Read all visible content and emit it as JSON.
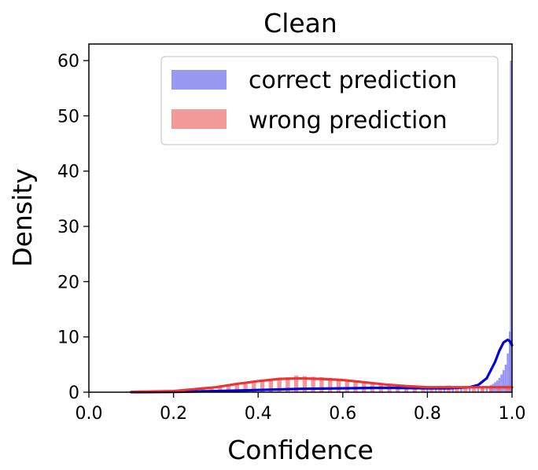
{
  "chart_data": {
    "type": "bar",
    "title": "Clean",
    "xlabel": "Confidence",
    "ylabel": "Density",
    "xlim": [
      0.0,
      1.0
    ],
    "ylim": [
      0,
      63
    ],
    "xticks": [
      "0.0",
      "0.2",
      "0.4",
      "0.6",
      "0.8",
      "1.0"
    ],
    "yticks": [
      "0",
      "10",
      "20",
      "30",
      "40",
      "50",
      "60"
    ],
    "legend": {
      "placement": "upper-right"
    },
    "grid": false,
    "series": [
      {
        "name": "correct prediction",
        "color": "#7777ee",
        "kde_color": "#0000dd",
        "bin_width": 0.005,
        "bins": [
          [
            0.8,
            0.6
          ],
          [
            0.82,
            0.6
          ],
          [
            0.84,
            0.6
          ],
          [
            0.86,
            0.7
          ],
          [
            0.88,
            0.7
          ],
          [
            0.9,
            0.8
          ],
          [
            0.92,
            0.9
          ],
          [
            0.93,
            1.0
          ],
          [
            0.94,
            1.1
          ],
          [
            0.95,
            1.3
          ],
          [
            0.955,
            1.5
          ],
          [
            0.96,
            1.8
          ],
          [
            0.965,
            2.1
          ],
          [
            0.97,
            2.6
          ],
          [
            0.975,
            3.2
          ],
          [
            0.98,
            4.0
          ],
          [
            0.985,
            5.0
          ],
          [
            0.99,
            7.0
          ],
          [
            0.995,
            11.0
          ],
          [
            0.9975,
            60.0
          ]
        ],
        "kde": [
          [
            0.1,
            0.0
          ],
          [
            0.2,
            0.05
          ],
          [
            0.3,
            0.2
          ],
          [
            0.4,
            0.4
          ],
          [
            0.5,
            0.6
          ],
          [
            0.6,
            0.7
          ],
          [
            0.7,
            0.8
          ],
          [
            0.8,
            0.7
          ],
          [
            0.85,
            0.7
          ],
          [
            0.9,
            0.9
          ],
          [
            0.92,
            1.3
          ],
          [
            0.94,
            2.5
          ],
          [
            0.96,
            5.5
          ],
          [
            0.97,
            7.5
          ],
          [
            0.98,
            9.0
          ],
          [
            0.99,
            9.5
          ],
          [
            0.995,
            9.2
          ],
          [
            1.0,
            8.5
          ]
        ]
      },
      {
        "name": "wrong prediction",
        "color": "#ee7777",
        "kde_color": "#ee3333",
        "bin_width": 0.01,
        "bins": [
          [
            0.11,
            0.1
          ],
          [
            0.13,
            0.1
          ],
          [
            0.15,
            0.1
          ],
          [
            0.17,
            0.1
          ],
          [
            0.19,
            0.2
          ],
          [
            0.21,
            0.2
          ],
          [
            0.23,
            0.3
          ],
          [
            0.25,
            0.4
          ],
          [
            0.27,
            0.5
          ],
          [
            0.29,
            0.7
          ],
          [
            0.31,
            0.9
          ],
          [
            0.33,
            1.2
          ],
          [
            0.35,
            1.4
          ],
          [
            0.37,
            1.6
          ],
          [
            0.39,
            1.9
          ],
          [
            0.41,
            2.0
          ],
          [
            0.43,
            2.2
          ],
          [
            0.45,
            2.5
          ],
          [
            0.47,
            2.7
          ],
          [
            0.49,
            3.0
          ],
          [
            0.51,
            2.9
          ],
          [
            0.53,
            2.8
          ],
          [
            0.55,
            2.7
          ],
          [
            0.57,
            2.6
          ],
          [
            0.59,
            2.4
          ],
          [
            0.61,
            2.2
          ],
          [
            0.63,
            2.0
          ],
          [
            0.65,
            1.8
          ],
          [
            0.67,
            1.6
          ],
          [
            0.69,
            1.5
          ],
          [
            0.71,
            1.3
          ],
          [
            0.73,
            1.2
          ],
          [
            0.75,
            1.1
          ],
          [
            0.77,
            1.0
          ],
          [
            0.79,
            1.0
          ],
          [
            0.81,
            1.0
          ],
          [
            0.83,
            1.1
          ],
          [
            0.85,
            1.2
          ],
          [
            0.87,
            1.1
          ],
          [
            0.89,
            1.0
          ],
          [
            0.91,
            1.0
          ],
          [
            0.93,
            0.9
          ],
          [
            0.95,
            0.9
          ],
          [
            0.97,
            1.0
          ],
          [
            0.99,
            1.3
          ]
        ],
        "kde": [
          [
            0.1,
            0.05
          ],
          [
            0.2,
            0.2
          ],
          [
            0.3,
            0.9
          ],
          [
            0.35,
            1.5
          ],
          [
            0.4,
            2.0
          ],
          [
            0.45,
            2.4
          ],
          [
            0.5,
            2.5
          ],
          [
            0.55,
            2.4
          ],
          [
            0.6,
            2.2
          ],
          [
            0.65,
            1.8
          ],
          [
            0.7,
            1.4
          ],
          [
            0.75,
            1.1
          ],
          [
            0.8,
            0.9
          ],
          [
            0.85,
            0.9
          ],
          [
            0.9,
            0.9
          ],
          [
            0.95,
            0.9
          ],
          [
            1.0,
            0.9
          ]
        ]
      }
    ]
  }
}
